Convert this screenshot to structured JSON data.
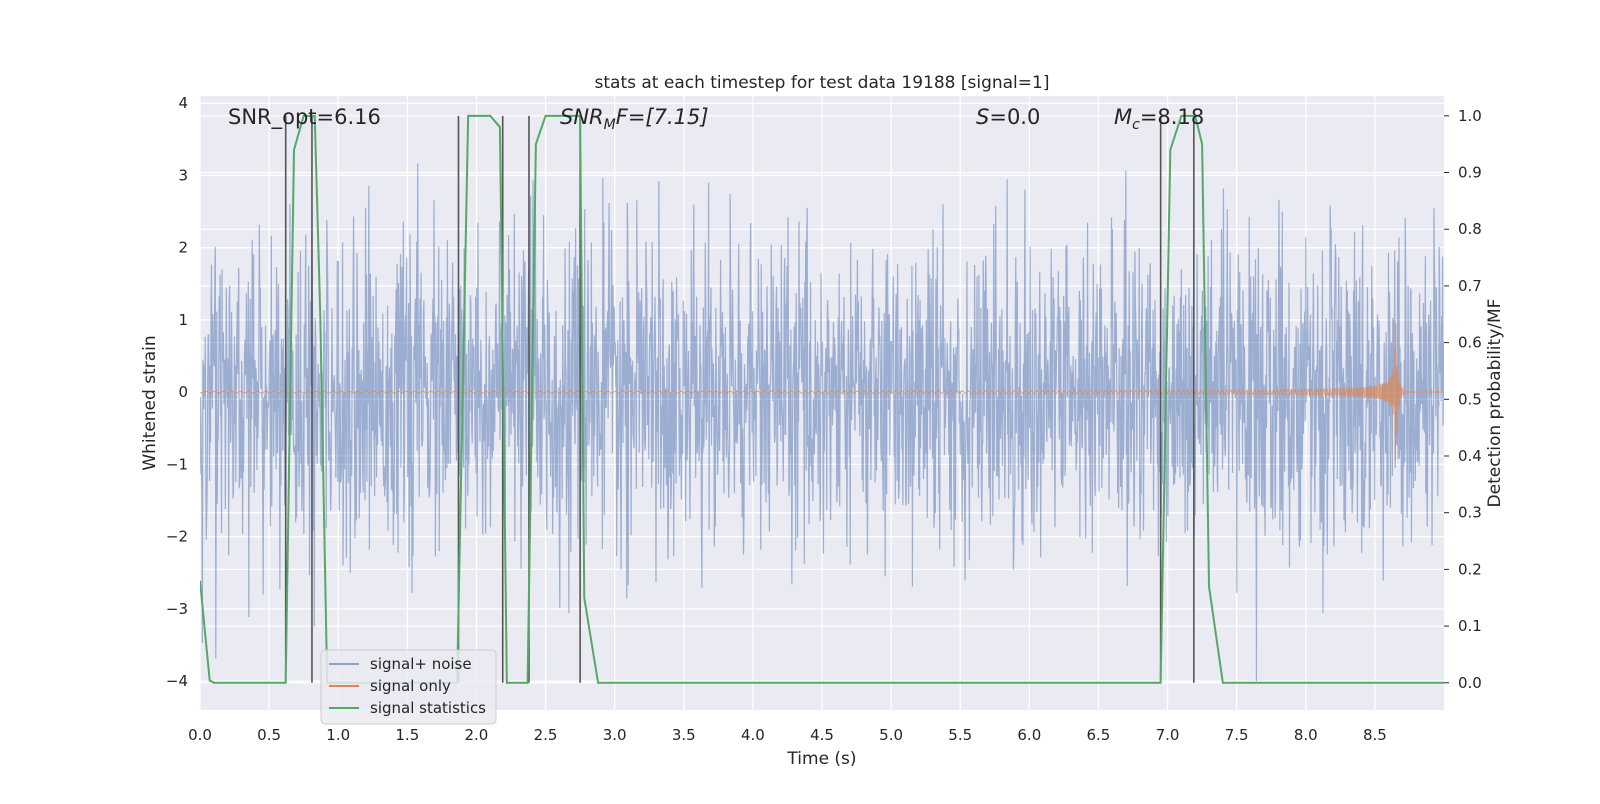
{
  "chart_data": {
    "type": "line",
    "title": "stats at each timestep for test data 19188 [signal=1]",
    "xlabel": "Time (s)",
    "ylabel": "Whitened strain",
    "y2label": "Detection probability/MF",
    "xlim": [
      0.0,
      9.0
    ],
    "ylim": [
      -4.4,
      4.1
    ],
    "y2lim": [
      -0.048,
      1.035
    ],
    "x_ticks": [
      "0.0",
      "0.5",
      "1.0",
      "1.5",
      "2.0",
      "2.5",
      "3.0",
      "3.5",
      "4.0",
      "4.5",
      "5.0",
      "5.5",
      "6.0",
      "6.5",
      "7.0",
      "7.5",
      "8.0",
      "8.5"
    ],
    "y_ticks": [
      "4",
      "3",
      "2",
      "1",
      "0",
      "−1",
      "−2",
      "−3",
      "−4"
    ],
    "y2_ticks": [
      "1.0",
      "0.9",
      "0.8",
      "0.7",
      "0.6",
      "0.5",
      "0.4",
      "0.3",
      "0.2",
      "0.1",
      "0.0"
    ],
    "grid": true,
    "legend_position": "lower-left",
    "annotations": {
      "snr_opt": "SNR_opt=6.16",
      "snr_mf_base": "SNR",
      "snr_mf_sub": "M",
      "snr_mf_rest": "F=[7.15]",
      "s_base": "S",
      "s_rest": "=0.0",
      "mc_base": "M",
      "mc_sub": "c",
      "mc_rest": "=8.18"
    },
    "series": [
      {
        "name": "signal+ noise",
        "color": "#4c72b0",
        "kind": "noise",
        "description_values": {
          "typical_band": [
            -1.9,
            2.1
          ],
          "peak_max": 3.65,
          "peak_min": -4.0
        }
      },
      {
        "name": "signal only",
        "color": "#dd8452",
        "kind": "chirp",
        "merger_time": 8.65,
        "peak_amplitude": 0.95
      },
      {
        "name": "signal statistics",
        "color": "#55a868",
        "axis": "right",
        "x": [
          0.0,
          0.07,
          0.1,
          0.2,
          0.5,
          0.62,
          0.68,
          0.75,
          0.8,
          0.83,
          0.87,
          0.92,
          1.0,
          1.6,
          1.8,
          1.86,
          1.94,
          2.1,
          2.17,
          2.22,
          2.3,
          2.37,
          2.43,
          2.5,
          2.6,
          2.75,
          2.78,
          2.88,
          2.95,
          6.5,
          6.95,
          7.02,
          7.1,
          7.2,
          7.25,
          7.3,
          7.4,
          8.0,
          9.0
        ],
        "y": [
          0.18,
          0.004,
          0.0,
          0.0,
          0.0,
          0.0,
          0.94,
          1.0,
          1.0,
          1.0,
          0.65,
          0.0,
          0.0,
          0.0,
          0.0,
          0.0,
          1.0,
          1.0,
          0.98,
          0.0,
          0.0,
          0.0,
          0.95,
          1.0,
          1.0,
          1.0,
          0.15,
          0.0,
          0.0,
          0.0,
          0.0,
          0.94,
          1.0,
          1.0,
          0.95,
          0.17,
          0.0,
          0.0,
          0.0
        ]
      }
    ],
    "vertical_lines": [
      0.62,
      0.81,
      1.87,
      2.19,
      2.38,
      2.75,
      6.95,
      7.19
    ],
    "vertical_line_color": "#555555"
  }
}
